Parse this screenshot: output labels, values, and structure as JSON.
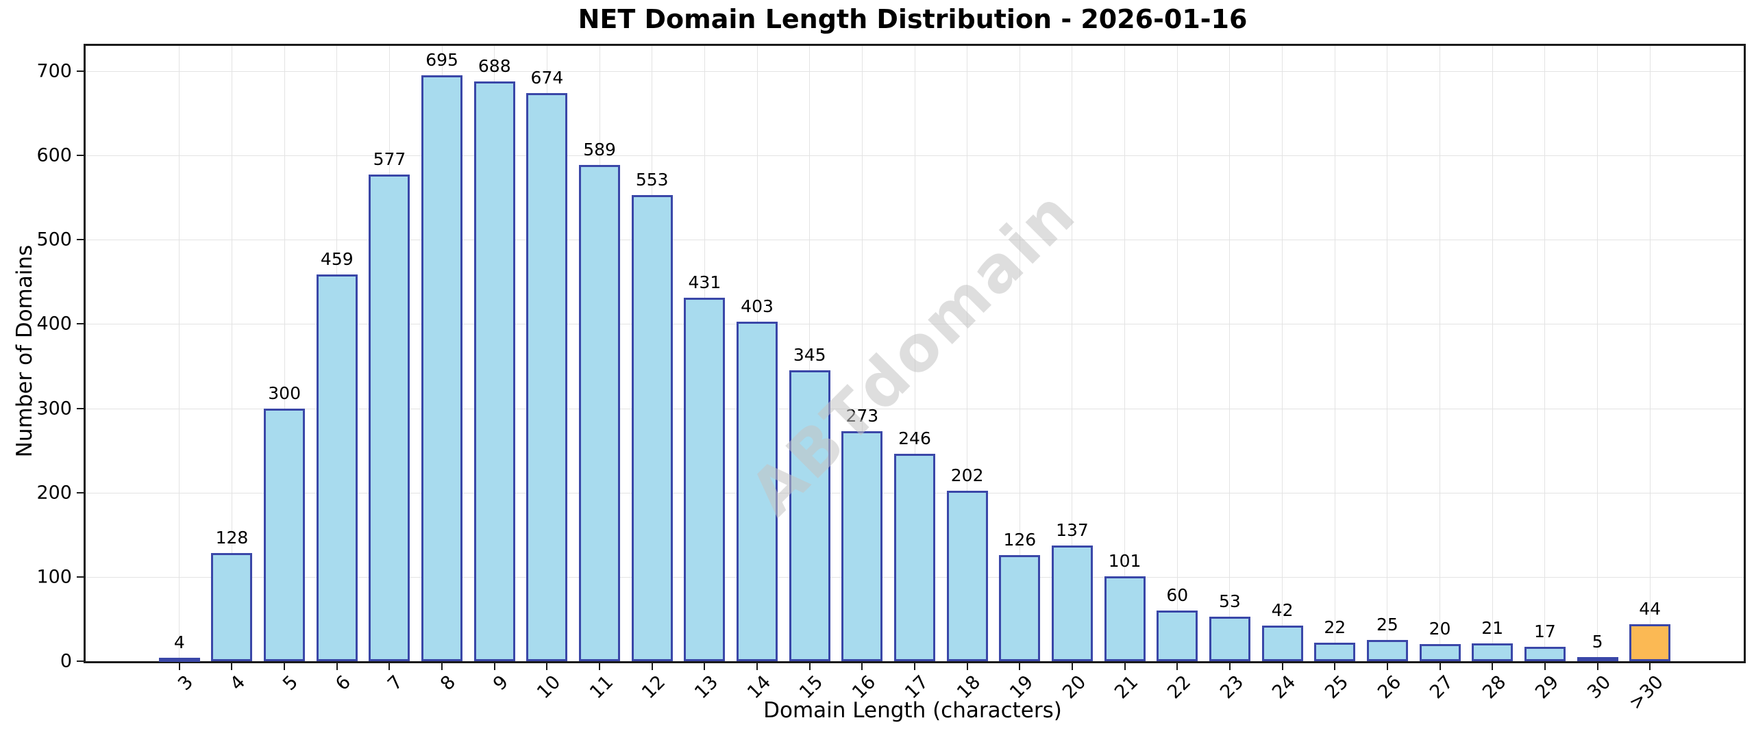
{
  "title": "NET Domain Length Distribution - 2026-01-16",
  "watermark_text": "ABTdomain",
  "chart_data": {
    "type": "bar",
    "title": "NET Domain Length Distribution - 2026-01-16",
    "xlabel": "Domain Length (characters)",
    "ylabel": "Number of Domains",
    "categories": [
      "3",
      "4",
      "5",
      "6",
      "7",
      "8",
      "9",
      "10",
      "11",
      "12",
      "13",
      "14",
      "15",
      "16",
      "17",
      "18",
      "19",
      "20",
      "21",
      "22",
      "23",
      "24",
      "25",
      "26",
      "27",
      "28",
      "29",
      "30",
      ">30"
    ],
    "values": [
      4,
      128,
      300,
      459,
      577,
      695,
      688,
      674,
      589,
      553,
      431,
      403,
      345,
      273,
      246,
      202,
      126,
      137,
      101,
      60,
      53,
      42,
      22,
      25,
      20,
      21,
      17,
      5,
      44
    ],
    "ylim": [
      0,
      730
    ],
    "yticks": [
      0,
      100,
      200,
      300,
      400,
      500,
      600,
      700
    ],
    "grid": true,
    "legend": "none",
    "value_labels_above_bars": true,
    "bar_fill_color": "#a8dbee",
    "bar_edge_color": "#3a47a8",
    "highlight_index": 28,
    "highlight_fill_color": "#fbb954",
    "background_color": "#ffffff",
    "grid_color": "#e3e3e3",
    "x_tick_rotation_deg": 45
  }
}
